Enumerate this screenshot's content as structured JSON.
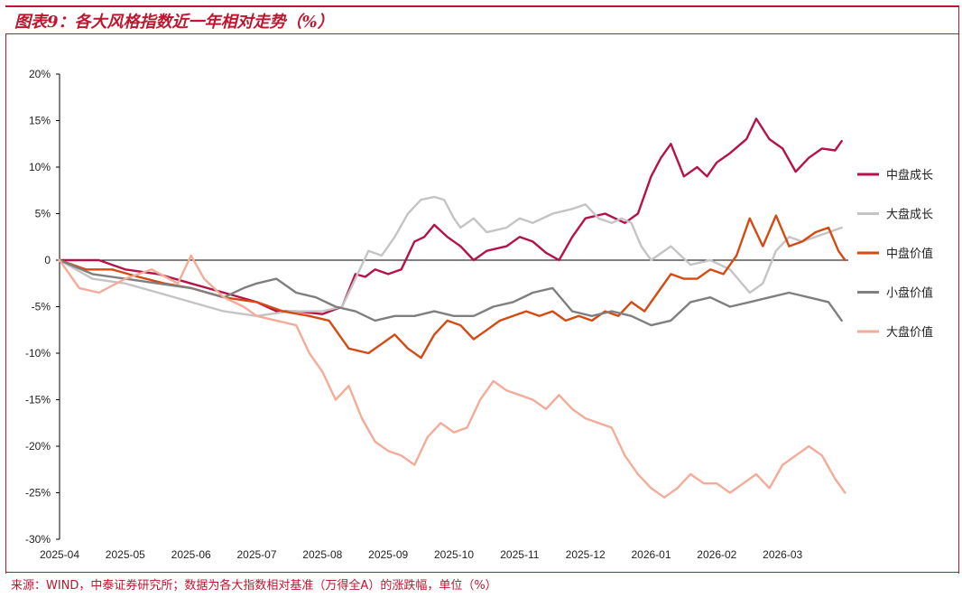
{
  "header": {
    "title": "图表9：各大风格指数近一年相对走势（%）"
  },
  "footer": {
    "source": "来源：WIND，中泰证券研究所；数据为各大指数相对基准（万得全A）的涨跌幅，单位（%）"
  },
  "colors": {
    "frame": "#c0152f",
    "mid_growth": "#b5124a",
    "large_growth": "#c4c4c4",
    "mid_value": "#d44a12",
    "small_value": "#7f7f7f",
    "large_value": "#f4ab98"
  },
  "chart_data": {
    "type": "line",
    "title": "各大风格指数近一年相对走势（%）",
    "xlabel": "",
    "ylabel": "",
    "ylim": [
      -30,
      20
    ],
    "yticks": [
      20,
      15,
      10,
      5,
      0,
      -5,
      -10,
      -15,
      -20,
      -25,
      -30
    ],
    "ytick_labels": [
      "20%",
      "15%",
      "10%",
      "5%",
      "0",
      "-5%",
      "-10%",
      "-15%",
      "-20%",
      "-25%",
      "-30%"
    ],
    "xlim": [
      0,
      12
    ],
    "x_ticks": [
      "2025-04",
      "2025-05",
      "2025-06",
      "2025-07",
      "2025-08",
      "2025-09",
      "2025-10",
      "2025-11",
      "2025-12",
      "2026-01",
      "2026-02",
      "2026-03"
    ],
    "legend_position": "right",
    "series": [
      {
        "name": "中盘成长",
        "color": "#b5124a",
        "x": [
          0,
          0.3,
          0.6,
          1.0,
          1.5,
          2.0,
          2.5,
          3.0,
          3.3,
          3.6,
          4.0,
          4.3,
          4.5,
          4.65,
          4.8,
          5.0,
          5.2,
          5.4,
          5.55,
          5.7,
          5.9,
          6.1,
          6.3,
          6.5,
          6.8,
          7.0,
          7.2,
          7.4,
          7.6,
          7.8,
          8.0,
          8.3,
          8.6,
          8.8,
          9.0,
          9.15,
          9.3,
          9.5,
          9.7,
          9.85,
          10.0,
          10.2,
          10.45,
          10.6,
          10.8,
          11.0,
          11.2,
          11.4,
          11.6,
          11.8,
          11.9
        ],
        "values": [
          0,
          0,
          0,
          -1,
          -1.5,
          -2.5,
          -3.5,
          -4.5,
          -5.5,
          -5.5,
          -5.8,
          -5.0,
          -1.5,
          -1.8,
          -1.0,
          -1.5,
          -1.0,
          2.0,
          2.5,
          3.8,
          2.5,
          1.5,
          0,
          1.0,
          1.5,
          2.5,
          2.0,
          0.8,
          0,
          2.5,
          4.5,
          5.0,
          4.0,
          5.0,
          9.0,
          11.0,
          12.5,
          9.0,
          10.0,
          9.0,
          10.5,
          11.5,
          13.0,
          15.2,
          13.0,
          12.0,
          9.5,
          11.0,
          12.0,
          11.8,
          12.8
        ]
      },
      {
        "name": "大盘成长",
        "color": "#c4c4c4",
        "x": [
          0,
          0.5,
          1.0,
          1.5,
          2.0,
          2.5,
          3.0,
          3.5,
          4.0,
          4.3,
          4.5,
          4.7,
          4.9,
          5.1,
          5.3,
          5.5,
          5.7,
          5.85,
          6.0,
          6.1,
          6.3,
          6.5,
          6.8,
          7.0,
          7.2,
          7.5,
          7.8,
          8.0,
          8.2,
          8.4,
          8.55,
          8.7,
          8.85,
          9.0,
          9.3,
          9.6,
          9.9,
          10.2,
          10.5,
          10.7,
          10.9,
          11.1,
          11.3,
          11.5,
          11.7,
          11.9
        ],
        "values": [
          0,
          -2.0,
          -2.5,
          -3.5,
          -4.5,
          -5.5,
          -6.0,
          -5.5,
          -5.5,
          -5.0,
          -2.0,
          1.0,
          0.5,
          2.5,
          5.0,
          6.5,
          6.8,
          6.5,
          4.5,
          3.5,
          4.5,
          3.0,
          3.5,
          4.5,
          4.0,
          5.0,
          5.5,
          6.0,
          4.5,
          4.0,
          4.5,
          4.0,
          1.5,
          0,
          1.5,
          -0.5,
          0,
          -1.0,
          -3.5,
          -2.5,
          1.0,
          2.5,
          2.0,
          2.5,
          3.0,
          3.5
        ]
      },
      {
        "name": "中盘价值",
        "color": "#d44a12",
        "x": [
          0,
          0.4,
          0.8,
          1.2,
          1.6,
          2.0,
          2.5,
          3.0,
          3.4,
          3.8,
          4.1,
          4.4,
          4.7,
          4.9,
          5.1,
          5.3,
          5.5,
          5.7,
          5.9,
          6.1,
          6.3,
          6.5,
          6.7,
          6.9,
          7.1,
          7.3,
          7.5,
          7.7,
          7.9,
          8.1,
          8.3,
          8.5,
          8.7,
          8.9,
          9.1,
          9.3,
          9.5,
          9.7,
          9.9,
          10.1,
          10.3,
          10.5,
          10.7,
          10.9,
          11.1,
          11.3,
          11.5,
          11.7,
          11.85,
          11.95
        ],
        "values": [
          0,
          -1.0,
          -1.0,
          -1.8,
          -2.5,
          -3.0,
          -4.0,
          -4.5,
          -5.5,
          -6.0,
          -6.5,
          -9.5,
          -10.0,
          -9.0,
          -8.0,
          -9.5,
          -10.5,
          -8.0,
          -6.5,
          -7.0,
          -8.5,
          -7.5,
          -6.5,
          -6.0,
          -5.5,
          -6.0,
          -5.5,
          -6.5,
          -6.0,
          -6.5,
          -5.5,
          -6.0,
          -4.5,
          -5.5,
          -3.5,
          -1.5,
          -2.0,
          -2.0,
          -1.0,
          -1.5,
          0.5,
          4.5,
          1.5,
          4.8,
          1.5,
          2.0,
          3.0,
          3.5,
          1.0,
          0
        ]
      },
      {
        "name": "小盘价值",
        "color": "#7f7f7f",
        "x": [
          0,
          0.5,
          1.0,
          1.5,
          2.0,
          2.5,
          2.8,
          3.0,
          3.3,
          3.6,
          3.9,
          4.2,
          4.5,
          4.8,
          5.1,
          5.4,
          5.7,
          6.0,
          6.3,
          6.6,
          6.9,
          7.2,
          7.5,
          7.8,
          8.1,
          8.4,
          8.7,
          9.0,
          9.3,
          9.6,
          9.9,
          10.2,
          10.5,
          10.8,
          11.1,
          11.4,
          11.7,
          11.9
        ],
        "values": [
          0,
          -1.5,
          -2.0,
          -2.5,
          -3.0,
          -4.0,
          -3.0,
          -2.5,
          -2.0,
          -3.5,
          -4.0,
          -5.0,
          -5.5,
          -6.5,
          -6.0,
          -6.0,
          -5.5,
          -6.0,
          -6.0,
          -5.0,
          -4.5,
          -3.5,
          -3.0,
          -5.5,
          -6.0,
          -5.5,
          -6.0,
          -7.0,
          -6.5,
          -4.5,
          -4.0,
          -5.0,
          -4.5,
          -4.0,
          -3.5,
          -4.0,
          -4.5,
          -6.5
        ]
      },
      {
        "name": "大盘价值",
        "color": "#f4ab98",
        "x": [
          0,
          0.3,
          0.6,
          1.0,
          1.4,
          1.8,
          2.0,
          2.2,
          2.5,
          2.8,
          3.0,
          3.3,
          3.6,
          3.8,
          4.0,
          4.2,
          4.4,
          4.6,
          4.8,
          5.0,
          5.2,
          5.4,
          5.6,
          5.8,
          6.0,
          6.2,
          6.4,
          6.6,
          6.8,
          7.0,
          7.2,
          7.4,
          7.6,
          7.8,
          8.0,
          8.2,
          8.4,
          8.6,
          8.8,
          9.0,
          9.2,
          9.4,
          9.6,
          9.8,
          10.0,
          10.2,
          10.4,
          10.6,
          10.8,
          11.0,
          11.2,
          11.4,
          11.6,
          11.8,
          11.95
        ],
        "values": [
          0,
          -3.0,
          -3.5,
          -2.0,
          -1.0,
          -2.5,
          0.5,
          -2.0,
          -4.0,
          -5.0,
          -6.0,
          -6.5,
          -7.0,
          -10.0,
          -12.0,
          -15.0,
          -13.5,
          -17.0,
          -19.5,
          -20.5,
          -21.0,
          -22.0,
          -19.0,
          -17.5,
          -18.5,
          -18.0,
          -15.0,
          -13.0,
          -14.0,
          -14.5,
          -15.0,
          -16.0,
          -14.5,
          -16.0,
          -17.0,
          -17.5,
          -18.0,
          -21.0,
          -23.0,
          -24.5,
          -25.5,
          -24.5,
          -23.0,
          -24.0,
          -24.0,
          -25.0,
          -24.0,
          -23.0,
          -24.5,
          -22.0,
          -21.0,
          -20.0,
          -21.0,
          -23.5,
          -25.0
        ]
      }
    ]
  }
}
